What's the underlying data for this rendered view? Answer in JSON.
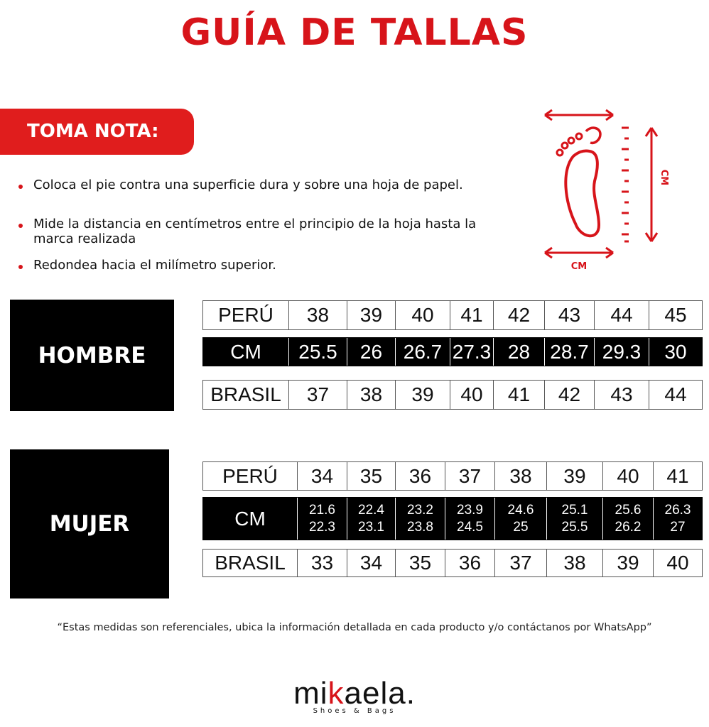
{
  "title": "GUÍA DE TALLAS",
  "note_tab": "TOMA NOTA:",
  "bullets": [
    "Coloca el pie contra una superficie dura y sobre una hoja de papel.",
    "Mide la distancia en centímetros entre el principio de la hoja hasta la marca realizada",
    "Redondea hacia el milímetro superior."
  ],
  "foot_diagram": {
    "icon": "foot-measure-icon",
    "label_vertical": "CM",
    "label_horizontal": "CM",
    "color": "#d7141a"
  },
  "men": {
    "label": "HOMBRE",
    "rows": [
      {
        "label": "PERÚ",
        "values": [
          "38",
          "39",
          "40",
          "41",
          "42",
          "43",
          "44",
          "45"
        ]
      },
      {
        "label": "CM",
        "values": [
          "25.5",
          "26",
          "26.7",
          "27.3",
          "28",
          "28.7",
          "29.3",
          "30"
        ]
      },
      {
        "label": "BRASIL",
        "values": [
          "37",
          "38",
          "39",
          "40",
          "41",
          "42",
          "43",
          "44"
        ]
      }
    ]
  },
  "women": {
    "label": "MUJER",
    "rows": [
      {
        "label": "PERÚ",
        "values": [
          "34",
          "35",
          "36",
          "37",
          "38",
          "39",
          "40",
          "41"
        ]
      },
      {
        "label": "CM",
        "values": [
          [
            "21.6",
            "22.3"
          ],
          [
            "22.4",
            "23.1"
          ],
          [
            "23.2",
            "23.8"
          ],
          [
            "23.9",
            "24.5"
          ],
          [
            "24.6",
            "25"
          ],
          [
            "25.1",
            "25.5"
          ],
          [
            "25.6",
            "26.2"
          ],
          [
            "26.3",
            "27"
          ]
        ]
      },
      {
        "label": "BRASIL",
        "values": [
          "33",
          "34",
          "35",
          "36",
          "37",
          "38",
          "39",
          "40"
        ]
      }
    ]
  },
  "footnote": "“Estas medidas son referenciales, ubica la información detallada en cada producto y/o contáctanos por WhatsApp”",
  "brand": {
    "name": "mikaela.",
    "tagline": "Shoes & Bags"
  },
  "colors": {
    "accent": "#d7141a",
    "dark": "#000000"
  }
}
